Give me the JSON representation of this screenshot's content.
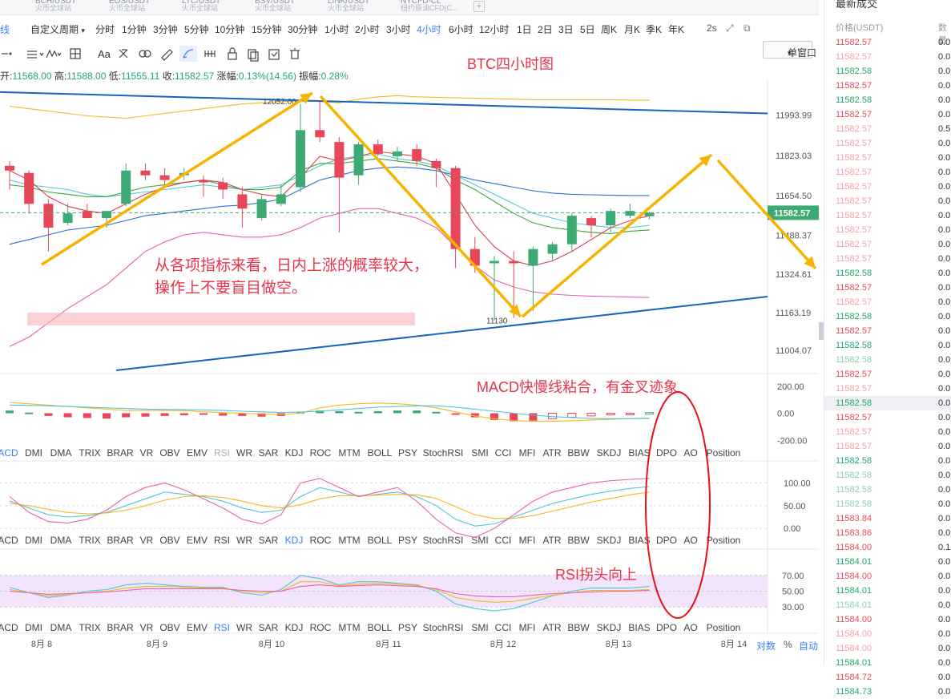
{
  "tabs": [
    {
      "title": "UT",
      "sub": "站"
    },
    {
      "title": "BCH/USDT",
      "sub": "火币全球站"
    },
    {
      "title": "EOS/USDT",
      "sub": "火币全球站"
    },
    {
      "title": "LTC/USDT",
      "sub": "火币全球站"
    },
    {
      "title": "BSV/USDT",
      "sub": "火币全球站"
    },
    {
      "title": "LINK/USDT",
      "sub": "火币全球站"
    },
    {
      "title": "NYCFD-CL",
      "sub": "纽约原油CFD(C..."
    }
  ],
  "tab_plus": "+",
  "periods": {
    "line_label": "线",
    "custom": "自定义周期",
    "items": [
      "分时",
      "1分钟",
      "3分钟",
      "5分钟",
      "10分钟",
      "15分钟",
      "30分钟",
      "1小时",
      "2小时",
      "3小时",
      "4小时",
      "6小时",
      "12小时",
      "1日",
      "2日",
      "3日",
      "5日",
      "周K",
      "月K",
      "季K",
      "年K"
    ],
    "active": "4小时",
    "refresh": "2s",
    "window_btn": "单窗口"
  },
  "toolbar": {
    "font_label": "Aa"
  },
  "ohlc": {
    "open_label": "开:",
    "open": "11568.00",
    "high_label": "高:",
    "high": "11588.00",
    "low_label": "低:",
    "low": "11555.11",
    "close_label": "收:",
    "close": "11582.57",
    "change_label": "涨幅:",
    "change": "0.13%(14.56)",
    "amp_label": "振幅:",
    "amp": "0.28%"
  },
  "annotations": {
    "title": "BTC四小时图",
    "main_line1": "从各项指标来看，日内上涨的概率较大，",
    "main_line2": "操作上不要盲目做空。",
    "macd_note": "MACD快慢线粘合，有金叉迹象",
    "rsi_note": "RSI拐头向上"
  },
  "indicator_tabs": [
    "ACD",
    "DMI",
    "DMA",
    "TRIX",
    "BRAR",
    "VR",
    "OBV",
    "EMV",
    "RSI",
    "WR",
    "SAR",
    "KDJ",
    "ROC",
    "MTM",
    "BOLL",
    "PSY",
    "StochRSI",
    "SMI",
    "CCI",
    "MFI",
    "ATR",
    "BBW",
    "SKDJ",
    "BIAS",
    "DPO",
    "AO",
    "Position"
  ],
  "indicator_tab_highlight": [
    "",
    "KDJ",
    "RSI"
  ],
  "bottom_axis": {
    "dates": [
      "8月 8",
      "8月 9",
      "8月 10",
      "8月 11",
      "8月 12",
      "8月 13",
      "8月 14"
    ],
    "log_label": "对数",
    "pct_label": "%",
    "auto_label": "自动"
  },
  "right_panel": {
    "title": "最新成交",
    "price_header": "价格(USDT)",
    "amount_header": "数量",
    "trades": [
      {
        "p": "11582.57",
        "a": "0.0",
        "c": "red"
      },
      {
        "p": "11582.57",
        "a": "0.0",
        "c": "lred"
      },
      {
        "p": "11582.58",
        "a": "0.0",
        "c": "green"
      },
      {
        "p": "11582.57",
        "a": "0.0",
        "c": "red"
      },
      {
        "p": "11582.58",
        "a": "0.0",
        "c": "green"
      },
      {
        "p": "11582.57",
        "a": "0.0",
        "c": "red"
      },
      {
        "p": "11582.57",
        "a": "0.5",
        "c": "lred"
      },
      {
        "p": "11582.57",
        "a": "0.0",
        "c": "lred"
      },
      {
        "p": "11582.57",
        "a": "0.0",
        "c": "lred"
      },
      {
        "p": "11582.57",
        "a": "0.0",
        "c": "lred"
      },
      {
        "p": "11582.57",
        "a": "0.0",
        "c": "lred"
      },
      {
        "p": "11582.57",
        "a": "0.0",
        "c": "lred"
      },
      {
        "p": "11582.57",
        "a": "0.0",
        "c": "lred"
      },
      {
        "p": "11582.57",
        "a": "0.0",
        "c": "lred"
      },
      {
        "p": "11582.57",
        "a": "0.0",
        "c": "lred"
      },
      {
        "p": "11582.57",
        "a": "0.0",
        "c": "lred"
      },
      {
        "p": "11582.58",
        "a": "0.0",
        "c": "green"
      },
      {
        "p": "11582.57",
        "a": "0.0",
        "c": "red"
      },
      {
        "p": "11582.57",
        "a": "0.0",
        "c": "lred"
      },
      {
        "p": "11582.58",
        "a": "0.0",
        "c": "green"
      },
      {
        "p": "11582.57",
        "a": "0.0",
        "c": "red"
      },
      {
        "p": "11582.58",
        "a": "0.0",
        "c": "green"
      },
      {
        "p": "11582.58",
        "a": "0.0",
        "c": "lgreen"
      },
      {
        "p": "11582.57",
        "a": "0.0",
        "c": "red"
      },
      {
        "p": "11582.57",
        "a": "0.0",
        "c": "lred"
      },
      {
        "p": "11582.58",
        "a": "0.0",
        "c": "green",
        "hl": true
      },
      {
        "p": "11582.57",
        "a": "0.0",
        "c": "red"
      },
      {
        "p": "11582.57",
        "a": "0.0",
        "c": "lred"
      },
      {
        "p": "11582.57",
        "a": "0.0",
        "c": "lred"
      },
      {
        "p": "11582.58",
        "a": "0.0",
        "c": "green"
      },
      {
        "p": "11582.58",
        "a": "0.0",
        "c": "lgreen"
      },
      {
        "p": "11582.58",
        "a": "0.0",
        "c": "lgreen"
      },
      {
        "p": "11582.58",
        "a": "0.0",
        "c": "lgreen"
      },
      {
        "p": "11583.84",
        "a": "0.0",
        "c": "red"
      },
      {
        "p": "11583.86",
        "a": "0.0",
        "c": "red"
      },
      {
        "p": "11584.00",
        "a": "0.1",
        "c": "red"
      },
      {
        "p": "11584.01",
        "a": "0.0",
        "c": "green"
      },
      {
        "p": "11584.00",
        "a": "0.0",
        "c": "red"
      },
      {
        "p": "11584.01",
        "a": "0.0",
        "c": "green"
      },
      {
        "p": "11584.01",
        "a": "0.0",
        "c": "lgreen"
      },
      {
        "p": "11584.00",
        "a": "0.0",
        "c": "red"
      },
      {
        "p": "11584.00",
        "a": "0.0",
        "c": "lred"
      },
      {
        "p": "11584.00",
        "a": "0.0",
        "c": "lred"
      },
      {
        "p": "11584.01",
        "a": "0.0",
        "c": "green"
      },
      {
        "p": "11584.72",
        "a": "0.0",
        "c": "red"
      },
      {
        "p": "11584.73",
        "a": "0.0",
        "c": "green"
      }
    ]
  },
  "chart_data": [
    {
      "type": "candlestick",
      "title": "BTC四小时图",
      "current_price": "11582.57",
      "price_axis": [
        "11993.99",
        "11823.03",
        "11654.50",
        "11488.37",
        "11324.61",
        "11163.19",
        "11004.07"
      ],
      "price_ticks": [
        11993.99,
        11823.03,
        11654.5,
        11488.37,
        11324.61,
        11163.19,
        11004.07
      ],
      "ylim": [
        10920,
        12140
      ],
      "high_label": "12052.00",
      "low_label": "11130",
      "dates": [
        "8月 8",
        "8月 9",
        "8月 10",
        "8月 11",
        "8月 12",
        "8月 13",
        "8月 14"
      ],
      "candles": [
        [
          11780,
          11800,
          11680,
          11760
        ],
        [
          11750,
          11760,
          11580,
          11620
        ],
        [
          11620,
          11640,
          11420,
          11520
        ],
        [
          11540,
          11620,
          11530,
          11580
        ],
        [
          11590,
          11620,
          11570,
          11560
        ],
        [
          11560,
          11590,
          11520,
          11590
        ],
        [
          11620,
          11790,
          11610,
          11760
        ],
        [
          11760,
          11790,
          11720,
          11740
        ],
        [
          11740,
          11770,
          11700,
          11720
        ],
        [
          11740,
          11770,
          11720,
          11750
        ],
        [
          11720,
          11740,
          11650,
          11710
        ],
        [
          11710,
          11730,
          11640,
          11680
        ],
        [
          11660,
          11690,
          11520,
          11600
        ],
        [
          11560,
          11660,
          11550,
          11640
        ],
        [
          11620,
          11700,
          11610,
          11660
        ],
        [
          11690,
          12040,
          11670,
          11930
        ],
        [
          11930,
          12052,
          11880,
          11900
        ],
        [
          11880,
          11900,
          11500,
          11730
        ],
        [
          11740,
          11880,
          11700,
          11870
        ],
        [
          11870,
          11890,
          11820,
          11830
        ],
        [
          11820,
          11860,
          11800,
          11840
        ],
        [
          11850,
          11870,
          11780,
          11800
        ],
        [
          11800,
          11810,
          11690,
          11770
        ],
        [
          11770,
          11780,
          11350,
          11430
        ],
        [
          11430,
          11480,
          11330,
          11360
        ],
        [
          11370,
          11400,
          11130,
          11380
        ],
        [
          11380,
          11420,
          11140,
          11370
        ],
        [
          11360,
          11440,
          11170,
          11430
        ],
        [
          11410,
          11460,
          11380,
          11450
        ],
        [
          11450,
          11580,
          11420,
          11570
        ],
        [
          11560,
          11570,
          11480,
          11530
        ],
        [
          11530,
          11600,
          11500,
          11590
        ],
        [
          11570,
          11620,
          11560,
          11590
        ],
        [
          11568,
          11588,
          11555,
          11582
        ]
      ],
      "ma_yellow": [
        12030,
        12020,
        12010,
        12000,
        11990,
        11985,
        11980,
        11990,
        12000,
        12010,
        12020,
        12030,
        12040,
        12045,
        12050,
        12052,
        12050,
        12045,
        12060,
        12070,
        12075,
        12070,
        12068,
        12066,
        12064,
        12062,
        12060,
        12058,
        12058,
        12058,
        12058,
        12058,
        12056,
        12056
      ],
      "ma_boll_mid": [
        11720,
        11700,
        11690,
        11680,
        11660,
        11650,
        11660,
        11670,
        11680,
        11690,
        11700,
        11690,
        11680,
        11690,
        11700,
        11740,
        11780,
        11810,
        11820,
        11830,
        11810,
        11800,
        11780,
        11740,
        11700,
        11660,
        11620,
        11580,
        11560,
        11540,
        11530,
        11520,
        11520,
        11530
      ],
      "ma_green": [
        11700,
        11690,
        11670,
        11660,
        11650,
        11650,
        11670,
        11690,
        11700,
        11710,
        11720,
        11700,
        11680,
        11680,
        11690,
        11760,
        11790,
        11790,
        11800,
        11810,
        11800,
        11790,
        11770,
        11720,
        11680,
        11630,
        11580,
        11540,
        11520,
        11510,
        11500,
        11495,
        11505,
        11510
      ],
      "ma_blue": [
        11450,
        11470,
        11490,
        11510,
        11520,
        11530,
        11550,
        11570,
        11580,
        11590,
        11600,
        11610,
        11615,
        11625,
        11640,
        11680,
        11720,
        11740,
        11760,
        11770,
        11775,
        11770,
        11760,
        11740,
        11720,
        11705,
        11690,
        11675,
        11665,
        11660,
        11658,
        11656,
        11655,
        11655
      ],
      "ma_pink": [
        11020,
        11060,
        11120,
        11180,
        11230,
        11280,
        11350,
        11420,
        11460,
        11490,
        11500,
        11490,
        11480,
        11480,
        11490,
        11520,
        11560,
        11580,
        11600,
        11600,
        11580,
        11560,
        11520,
        11440,
        11360,
        11300,
        11270,
        11250,
        11240,
        11235,
        11232,
        11230,
        11228,
        11226
      ],
      "ma_red": [
        11760,
        11720,
        11650,
        11610,
        11590,
        11580,
        11620,
        11660,
        11690,
        11710,
        11720,
        11710,
        11680,
        11660,
        11650,
        11730,
        11820,
        11800,
        11820,
        11840,
        11830,
        11820,
        11790,
        11660,
        11530,
        11440,
        11380,
        11360,
        11380,
        11420,
        11470,
        11520,
        11550,
        11570
      ]
    },
    {
      "type": "bar",
      "name": "MACD",
      "axis": [
        "200.00",
        "0.00",
        "-200.00"
      ],
      "ylim": [
        -240,
        240
      ],
      "values": [
        20,
        5,
        -20,
        -30,
        -35,
        -40,
        -30,
        -25,
        -20,
        -15,
        -10,
        -18,
        -20,
        -25,
        -20,
        10,
        20,
        15,
        10,
        15,
        20,
        20,
        10,
        -10,
        -30,
        -50,
        -60,
        -55,
        -40,
        -30,
        -20,
        -10,
        -5,
        5
      ],
      "dif": [
        80,
        70,
        60,
        50,
        40,
        30,
        20,
        20,
        20,
        20,
        10,
        5,
        0,
        -5,
        -10,
        0,
        40,
        60,
        70,
        75,
        70,
        60,
        40,
        10,
        -20,
        -40,
        -55,
        -60,
        -60,
        -55,
        -50,
        -45,
        -40,
        -35
      ],
      "dea": [
        60,
        58,
        55,
        50,
        45,
        40,
        35,
        30,
        28,
        26,
        24,
        20,
        15,
        10,
        5,
        8,
        15,
        25,
        35,
        45,
        50,
        55,
        55,
        45,
        30,
        15,
        0,
        -15,
        -25,
        -32,
        -38,
        -40,
        -40,
        -38
      ]
    },
    {
      "type": "line",
      "name": "KDJ",
      "axis": [
        "100.00",
        "50.00",
        "0.00"
      ],
      "ylim": [
        -5,
        115
      ],
      "k": [
        60,
        45,
        30,
        25,
        28,
        35,
        50,
        65,
        80,
        75,
        70,
        60,
        45,
        35,
        40,
        70,
        90,
        80,
        70,
        75,
        80,
        70,
        50,
        20,
        5,
        10,
        25,
        40,
        55,
        65,
        75,
        82,
        88,
        92
      ],
      "d": [
        55,
        50,
        42,
        35,
        32,
        34,
        40,
        50,
        62,
        70,
        72,
        68,
        60,
        50,
        45,
        52,
        65,
        72,
        72,
        73,
        75,
        74,
        66,
        48,
        30,
        22,
        22,
        28,
        38,
        48,
        58,
        66,
        74,
        80
      ],
      "j": [
        70,
        35,
        15,
        12,
        20,
        40,
        70,
        90,
        100,
        85,
        65,
        45,
        20,
        10,
        30,
        100,
        110,
        90,
        70,
        80,
        90,
        60,
        20,
        -10,
        -20,
        0,
        30,
        60,
        80,
        90,
        100,
        105,
        108,
        110
      ]
    },
    {
      "type": "line",
      "name": "RSI",
      "axis": [
        "70.00",
        "50.00",
        "30.00"
      ],
      "ylim": [
        15,
        85
      ],
      "rsi1": [
        55,
        48,
        42,
        45,
        50,
        52,
        58,
        60,
        58,
        56,
        55,
        55,
        48,
        45,
        52,
        70,
        66,
        58,
        62,
        62,
        60,
        58,
        50,
        34,
        28,
        25,
        28,
        36,
        44,
        50,
        54,
        54,
        54,
        56
      ],
      "rsi2": [
        52,
        48,
        44,
        46,
        48,
        50,
        54,
        56,
        56,
        55,
        54,
        54,
        50,
        48,
        50,
        62,
        62,
        57,
        59,
        60,
        59,
        57,
        52,
        42,
        38,
        36,
        37,
        41,
        45,
        48,
        51,
        51,
        51,
        52
      ],
      "rsi3": [
        50,
        48,
        46,
        47,
        48,
        49,
        51,
        53,
        53,
        53,
        53,
        53,
        51,
        50,
        50,
        56,
        58,
        56,
        57,
        58,
        57,
        56,
        53,
        47,
        44,
        43,
        43,
        45,
        47,
        48,
        49,
        50,
        50,
        51
      ]
    }
  ]
}
